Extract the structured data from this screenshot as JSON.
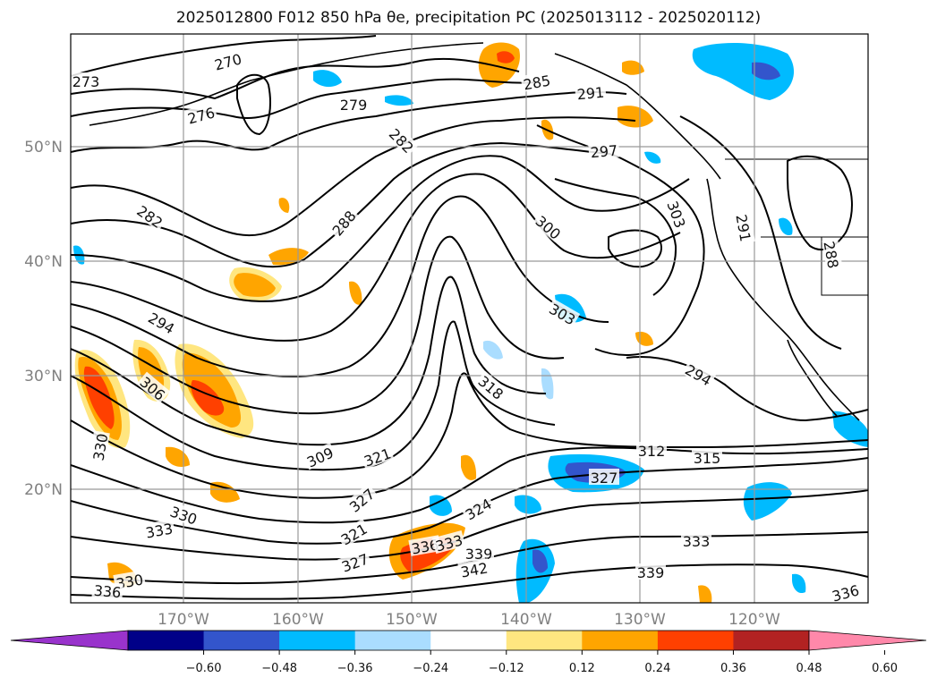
{
  "title": "2025012800 F012 850 hPa θe, precipitation PC (2025013112 - 2025020112)",
  "lat_labels": [
    "50°N",
    "40°N",
    "30°N",
    "20°N"
  ],
  "lon_labels": [
    "170°W",
    "160°W",
    "150°W",
    "140°W",
    "130°W",
    "120°W"
  ],
  "colorbar": {
    "ticks": [
      "−0.60",
      "−0.48",
      "−0.36",
      "−0.24",
      "−0.12",
      "0.12",
      "0.24",
      "0.36",
      "0.48",
      "0.60"
    ],
    "under_color": "#9933cc",
    "over_color": "#ff88aa",
    "colors": [
      "#000088",
      "#3355cc",
      "#00bbff",
      "#aaddff",
      "#ffffff",
      "#ffe680",
      "#ffa500",
      "#ff4000",
      "#b22222"
    ]
  },
  "contour_labels": [
    "270",
    "273",
    "276",
    "279",
    "285",
    "291",
    "282",
    "297",
    "282",
    "288",
    "300",
    "303",
    "291",
    "288",
    "294",
    "306",
    "303",
    "318",
    "294",
    "330",
    "309",
    "321",
    "312",
    "315",
    "327",
    "330",
    "327",
    "324",
    "333",
    "321",
    "336",
    "333",
    "327",
    "330",
    "339",
    "342",
    "339",
    "336",
    "333",
    "336"
  ]
}
